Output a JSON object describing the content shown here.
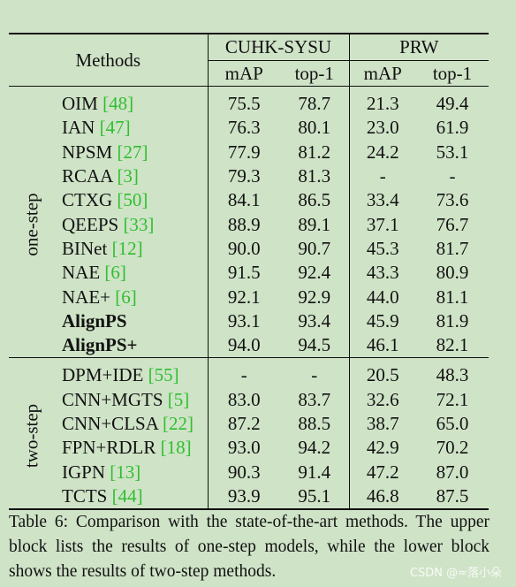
{
  "table": {
    "header": {
      "methods": "Methods",
      "dataset1": "CUHK-SYSU",
      "dataset2": "PRW",
      "map": "mAP",
      "top1": "top-1"
    },
    "groups": [
      {
        "label": "one-step",
        "rows": [
          {
            "name": "OIM",
            "ref": "[48]",
            "bold_name": false,
            "cuhk_map": "75.5",
            "cuhk_top1": "78.7",
            "prw_map": "21.3",
            "prw_top1": "49.4",
            "bold": []
          },
          {
            "name": "IAN",
            "ref": "[47]",
            "bold_name": false,
            "cuhk_map": "76.3",
            "cuhk_top1": "80.1",
            "prw_map": "23.0",
            "prw_top1": "61.9",
            "bold": []
          },
          {
            "name": "NPSM",
            "ref": "[27]",
            "bold_name": false,
            "cuhk_map": "77.9",
            "cuhk_top1": "81.2",
            "prw_map": "24.2",
            "prw_top1": "53.1",
            "bold": []
          },
          {
            "name": "RCAA",
            "ref": "[3]",
            "bold_name": false,
            "cuhk_map": "79.3",
            "cuhk_top1": "81.3",
            "prw_map": "-",
            "prw_top1": "-",
            "bold": []
          },
          {
            "name": "CTXG",
            "ref": "[50]",
            "bold_name": false,
            "cuhk_map": "84.1",
            "cuhk_top1": "86.5",
            "prw_map": "33.4",
            "prw_top1": "73.6",
            "bold": []
          },
          {
            "name": "QEEPS",
            "ref": "[33]",
            "bold_name": false,
            "cuhk_map": "88.9",
            "cuhk_top1": "89.1",
            "prw_map": "37.1",
            "prw_top1": "76.7",
            "bold": []
          },
          {
            "name": "BINet",
            "ref": "[12]",
            "bold_name": false,
            "cuhk_map": "90.0",
            "cuhk_top1": "90.7",
            "prw_map": "45.3",
            "prw_top1": "81.7",
            "bold": []
          },
          {
            "name": "NAE",
            "ref": "[6]",
            "bold_name": false,
            "cuhk_map": "91.5",
            "cuhk_top1": "92.4",
            "prw_map": "43.3",
            "prw_top1": "80.9",
            "bold": []
          },
          {
            "name": "NAE+",
            "ref": "[6]",
            "bold_name": false,
            "cuhk_map": "92.1",
            "cuhk_top1": "92.9",
            "prw_map": "44.0",
            "prw_top1": "81.1",
            "bold": []
          },
          {
            "name": "AlignPS",
            "ref": "",
            "bold_name": true,
            "cuhk_map": "93.1",
            "cuhk_top1": "93.4",
            "prw_map": "45.9",
            "prw_top1": "81.9",
            "bold": []
          },
          {
            "name": "AlignPS+",
            "ref": "",
            "bold_name": true,
            "cuhk_map": "94.0",
            "cuhk_top1": "94.5",
            "prw_map": "46.1",
            "prw_top1": "82.1",
            "bold": [
              "cuhk_map",
              "cuhk_top1",
              "prw_map",
              "prw_top1"
            ]
          }
        ]
      },
      {
        "label": "two-step",
        "rows": [
          {
            "name": "DPM+IDE",
            "ref": "[55]",
            "bold_name": false,
            "cuhk_map": "-",
            "cuhk_top1": "-",
            "prw_map": "20.5",
            "prw_top1": "48.3",
            "bold": []
          },
          {
            "name": "CNN+MGTS",
            "ref": "[5]",
            "bold_name": false,
            "cuhk_map": "83.0",
            "cuhk_top1": "83.7",
            "prw_map": "32.6",
            "prw_top1": "72.1",
            "bold": []
          },
          {
            "name": "CNN+CLSA",
            "ref": "[22]",
            "bold_name": false,
            "cuhk_map": "87.2",
            "cuhk_top1": "88.5",
            "prw_map": "38.7",
            "prw_top1": "65.0",
            "bold": []
          },
          {
            "name": "FPN+RDLR",
            "ref": "[18]",
            "bold_name": false,
            "cuhk_map": "93.0",
            "cuhk_top1": "94.2",
            "prw_map": "42.9",
            "prw_top1": "70.2",
            "bold": []
          },
          {
            "name": "IGPN",
            "ref": "[13]",
            "bold_name": false,
            "cuhk_map": "90.3",
            "cuhk_top1": "91.4",
            "prw_map": "47.2",
            "prw_top1": "87.0",
            "bold": [
              "prw_map"
            ]
          },
          {
            "name": "TCTS",
            "ref": "[44]",
            "bold_name": false,
            "cuhk_map": "93.9",
            "cuhk_top1": "95.1",
            "prw_map": "46.8",
            "prw_top1": "87.5",
            "bold": [
              "cuhk_map",
              "cuhk_top1",
              "prw_top1"
            ]
          }
        ]
      }
    ]
  },
  "caption": "Table 6: Comparison with the state-of-the-art methods. The upper block lists the results of one-step models, while the lower block shows the results of two-step methods.",
  "watermark": "CSDN @≈落小朵"
}
